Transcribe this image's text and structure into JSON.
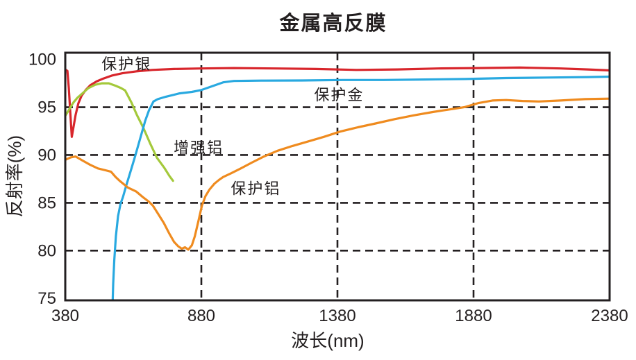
{
  "chart_data": {
    "type": "line",
    "title": "金属高反膜",
    "xlabel": "波长(nm)",
    "ylabel": "反射率(%)",
    "xlim": [
      380,
      2380
    ],
    "ylim": [
      74.8,
      100.7
    ],
    "x_ticks": [
      380,
      880,
      1380,
      1880,
      2380
    ],
    "y_ticks": [
      100,
      95,
      90,
      85,
      80,
      75
    ],
    "x_gridlines": [
      880,
      1380,
      1880
    ],
    "y_gridlines": [
      95,
      90,
      85,
      80
    ],
    "grid_style": "dashed",
    "legend_position": "inline-annotations",
    "axis_color": "#231f20",
    "background_color": "#ffffff",
    "series": [
      {
        "name": "保护银",
        "color": "#d8262c",
        "label_pos": {
          "x": 605,
          "y": 99.55
        },
        "points": [
          [
            382,
            98.9
          ],
          [
            388,
            98.8
          ],
          [
            393,
            97.0
          ],
          [
            398,
            94.6
          ],
          [
            404,
            91.9
          ],
          [
            410,
            92.9
          ],
          [
            418,
            94.2
          ],
          [
            428,
            95.4
          ],
          [
            440,
            96.2
          ],
          [
            455,
            96.8
          ],
          [
            472,
            97.3
          ],
          [
            495,
            97.7
          ],
          [
            520,
            98.0
          ],
          [
            550,
            98.3
          ],
          [
            590,
            98.55
          ],
          [
            640,
            98.75
          ],
          [
            700,
            98.9
          ],
          [
            780,
            99.0
          ],
          [
            880,
            99.05
          ],
          [
            1000,
            99.1
          ],
          [
            1150,
            99.05
          ],
          [
            1300,
            99.0
          ],
          [
            1450,
            98.9
          ],
          [
            1600,
            98.95
          ],
          [
            1750,
            99.05
          ],
          [
            1900,
            99.1
          ],
          [
            2050,
            99.15
          ],
          [
            2200,
            99.05
          ],
          [
            2300,
            98.95
          ],
          [
            2380,
            98.85
          ]
        ]
      },
      {
        "name": "增强铝",
        "color": "#a4c93b",
        "label_pos": {
          "x": 870,
          "y": 90.8
        },
        "points": [
          [
            380,
            94.1
          ],
          [
            395,
            94.8
          ],
          [
            410,
            95.5
          ],
          [
            425,
            96.0
          ],
          [
            445,
            96.5
          ],
          [
            465,
            97.0
          ],
          [
            490,
            97.35
          ],
          [
            515,
            97.5
          ],
          [
            540,
            97.5
          ],
          [
            565,
            97.25
          ],
          [
            585,
            97.0
          ],
          [
            600,
            96.75
          ],
          [
            623,
            95.5
          ],
          [
            643,
            94.2
          ],
          [
            666,
            92.9
          ],
          [
            692,
            91.2
          ],
          [
            717,
            89.7
          ],
          [
            743,
            88.7
          ],
          [
            763,
            87.8
          ],
          [
            776,
            87.3
          ]
        ]
      },
      {
        "name": "保护金",
        "color": "#29a9e0",
        "label_pos": {
          "x": 1386,
          "y": 96.3
        },
        "points": [
          [
            553,
            73.5
          ],
          [
            556,
            76.5
          ],
          [
            560,
            79.0
          ],
          [
            566,
            81.5
          ],
          [
            574,
            83.6
          ],
          [
            583,
            84.9
          ],
          [
            592,
            85.6
          ],
          [
            605,
            86.9
          ],
          [
            620,
            88.3
          ],
          [
            637,
            89.9
          ],
          [
            653,
            91.5
          ],
          [
            674,
            93.6
          ],
          [
            688,
            94.7
          ],
          [
            697,
            95.2
          ],
          [
            704,
            95.6
          ],
          [
            720,
            95.85
          ],
          [
            750,
            96.1
          ],
          [
            800,
            96.45
          ],
          [
            845,
            96.6
          ],
          [
            880,
            96.8
          ],
          [
            920,
            97.2
          ],
          [
            960,
            97.6
          ],
          [
            1000,
            97.75
          ],
          [
            1100,
            97.78
          ],
          [
            1250,
            97.8
          ],
          [
            1400,
            97.85
          ],
          [
            1550,
            97.85
          ],
          [
            1700,
            97.9
          ],
          [
            1850,
            97.95
          ],
          [
            2000,
            98.05
          ],
          [
            2150,
            98.1
          ],
          [
            2300,
            98.15
          ],
          [
            2380,
            98.2
          ]
        ]
      },
      {
        "name": "保护铝",
        "color": "#ef8b1f",
        "label_pos": {
          "x": 1080,
          "y": 86.5
        },
        "points": [
          [
            380,
            89.5
          ],
          [
            400,
            89.75
          ],
          [
            418,
            89.85
          ],
          [
            442,
            89.45
          ],
          [
            470,
            89.0
          ],
          [
            500,
            88.6
          ],
          [
            528,
            88.4
          ],
          [
            548,
            88.25
          ],
          [
            565,
            87.7
          ],
          [
            582,
            87.25
          ],
          [
            610,
            86.6
          ],
          [
            640,
            86.2
          ],
          [
            665,
            85.6
          ],
          [
            688,
            85.1
          ],
          [
            702,
            84.7
          ],
          [
            720,
            83.9
          ],
          [
            742,
            82.9
          ],
          [
            762,
            81.8
          ],
          [
            780,
            80.9
          ],
          [
            795,
            80.45
          ],
          [
            808,
            80.2
          ],
          [
            820,
            80.35
          ],
          [
            832,
            80.1
          ],
          [
            845,
            80.55
          ],
          [
            856,
            81.5
          ],
          [
            870,
            83.2
          ],
          [
            882,
            84.7
          ],
          [
            895,
            85.7
          ],
          [
            910,
            86.4
          ],
          [
            928,
            87.0
          ],
          [
            945,
            87.4
          ],
          [
            960,
            87.7
          ],
          [
            990,
            88.1
          ],
          [
            1025,
            88.6
          ],
          [
            1065,
            89.2
          ],
          [
            1110,
            89.85
          ],
          [
            1160,
            90.45
          ],
          [
            1215,
            90.95
          ],
          [
            1270,
            91.4
          ],
          [
            1330,
            91.9
          ],
          [
            1390,
            92.45
          ],
          [
            1455,
            92.9
          ],
          [
            1520,
            93.3
          ],
          [
            1590,
            93.75
          ],
          [
            1660,
            94.15
          ],
          [
            1730,
            94.5
          ],
          [
            1800,
            94.8
          ],
          [
            1845,
            95.0
          ],
          [
            1900,
            95.45
          ],
          [
            1950,
            95.7
          ],
          [
            2000,
            95.75
          ],
          [
            2060,
            95.65
          ],
          [
            2120,
            95.6
          ],
          [
            2200,
            95.7
          ],
          [
            2290,
            95.85
          ],
          [
            2380,
            95.9
          ]
        ]
      }
    ]
  }
}
